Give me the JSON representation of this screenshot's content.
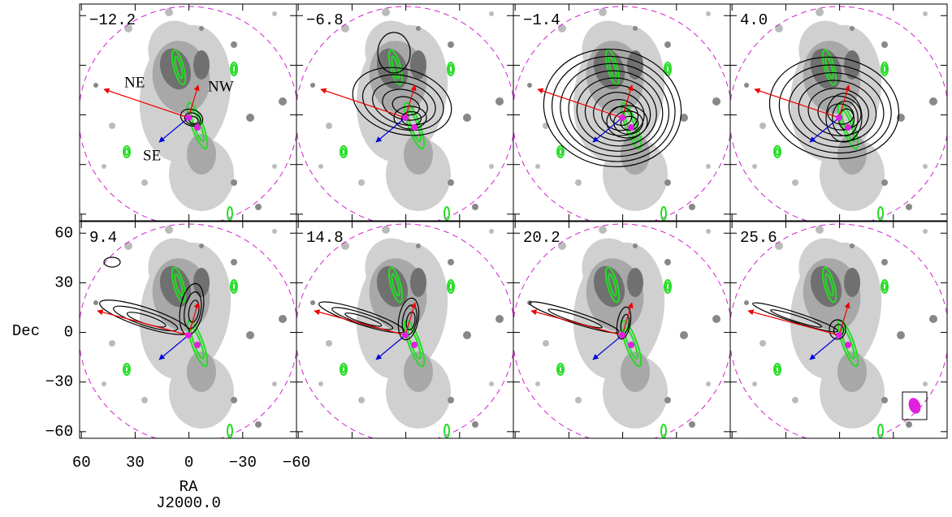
{
  "chart_data": {
    "type": "channel-map",
    "panels": [
      "−12.2",
      "−6.8",
      "−1.4",
      "4.0",
      "9.4",
      "14.8",
      "20.2",
      "25.6"
    ],
    "arrow_labels": [
      "NE",
      "NW",
      "SE"
    ],
    "xlabel": "RA",
    "xlabel2": "J2000.0",
    "ylabel": "Dec",
    "xlim": [
      61,
      -60
    ],
    "ylim": [
      -64,
      67
    ],
    "xticks": [
      60,
      30,
      0,
      {
        "value": -30,
        "label": "−30"
      },
      {
        "value": -60,
        "label": "−60"
      }
    ],
    "yticks": [
      60,
      30,
      0,
      {
        "value": -30,
        "label": "−30"
      },
      {
        "value": -60,
        "label": "−60"
      }
    ]
  }
}
